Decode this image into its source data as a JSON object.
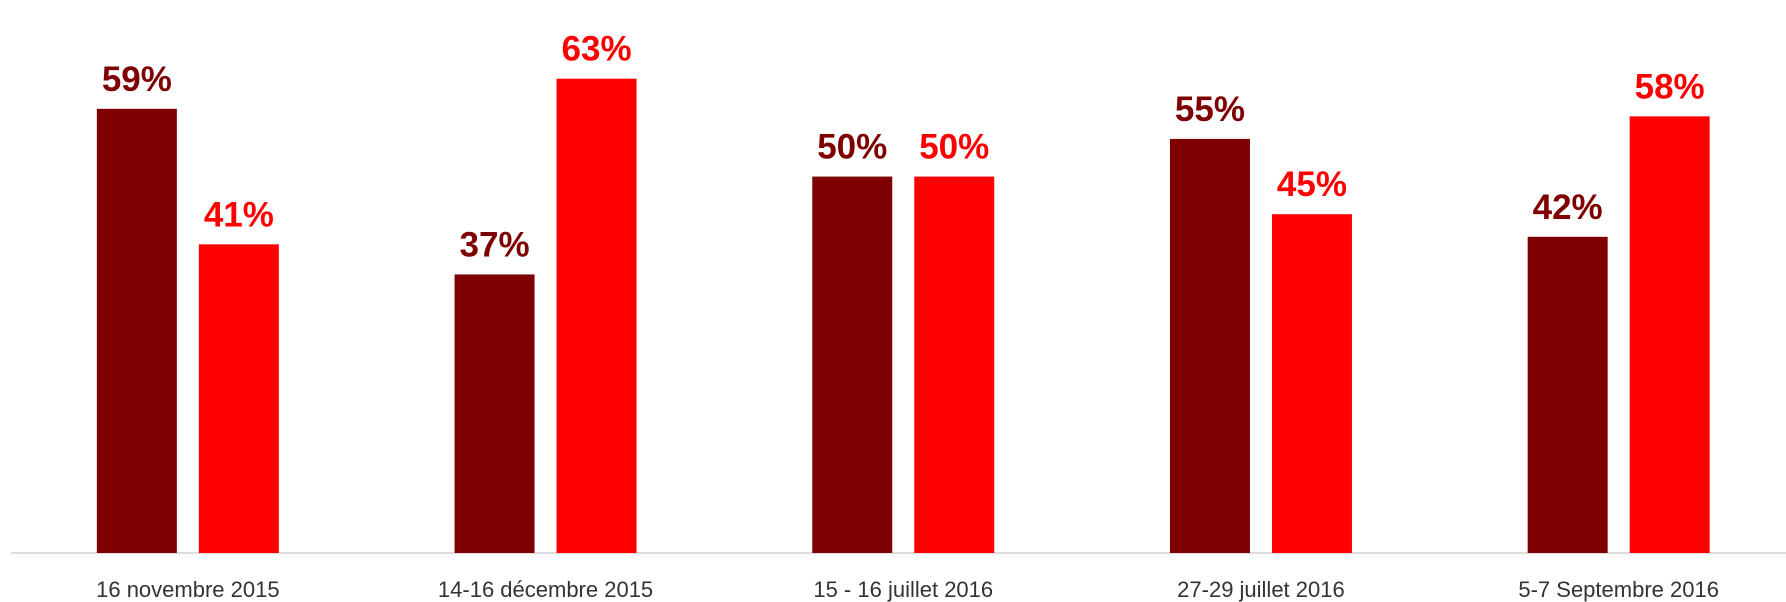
{
  "chart_data": {
    "type": "bar",
    "categories": [
      "16 novembre 2015",
      "14-16 décembre 2015",
      "15 - 16 juillet 2016",
      "27-29 juillet 2016",
      "5-7 Septembre 2016"
    ],
    "series": [
      {
        "color": "#7f0000",
        "values": [
          59,
          37,
          50,
          55,
          42
        ],
        "value_labels": [
          "59%",
          "37%",
          "50%",
          "55%",
          "42%"
        ]
      },
      {
        "color": "#ff0000",
        "values": [
          41,
          63,
          50,
          45,
          58
        ],
        "value_labels": [
          "41%",
          "63%",
          "50%",
          "45%",
          "58%"
        ]
      }
    ],
    "ylim": [
      0,
      70
    ]
  }
}
